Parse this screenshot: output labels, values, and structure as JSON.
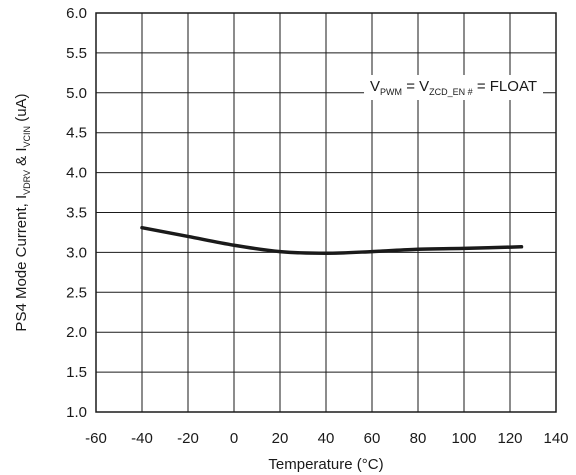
{
  "chart_data": {
    "type": "line",
    "xlabel": "Temperature (°C)",
    "ylabel": {
      "p1": "PS4 Mode Current, I",
      "sub1": "VDRV",
      "p2": " & I",
      "sub2": "VCIN",
      "p3": " (uA)"
    },
    "xlim": [
      -60,
      140
    ],
    "ylim": [
      1.0,
      6.0
    ],
    "x_ticks": [
      -60,
      -40,
      -20,
      0,
      20,
      40,
      60,
      80,
      100,
      120,
      140
    ],
    "y_ticks": [
      1.0,
      1.5,
      2.0,
      2.5,
      3.0,
      3.5,
      4.0,
      4.5,
      5.0,
      5.5,
      6.0
    ],
    "x_tick_labels": [
      "-60",
      "-40",
      "-20",
      "0",
      "20",
      "40",
      "60",
      "80",
      "100",
      "120",
      "140"
    ],
    "y_tick_labels": [
      "1.0",
      "1.5",
      "2.0",
      "2.5",
      "3.0",
      "3.5",
      "4.0",
      "4.5",
      "5.0",
      "5.5",
      "6.0"
    ],
    "grid": true,
    "legend": "none",
    "line_color": "#1a1a1a",
    "annotation": {
      "v1": "V",
      "s1": "PWM",
      "mid": " = V",
      "s2": "ZCD_EN #",
      "end": " = FLOAT"
    },
    "series": [
      {
        "x": [
          -40,
          -20,
          0,
          20,
          40,
          60,
          80,
          100,
          125
        ],
        "values": [
          3.31,
          3.2,
          3.09,
          3.01,
          2.99,
          3.01,
          3.04,
          3.05,
          3.07
        ]
      }
    ]
  }
}
